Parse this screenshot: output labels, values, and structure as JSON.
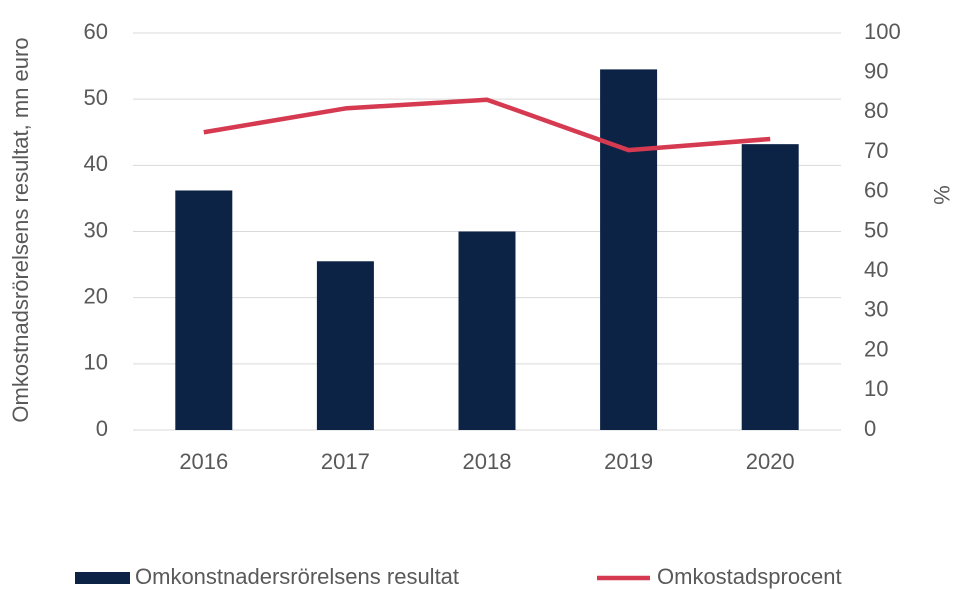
{
  "chart_data": {
    "type": "bar",
    "categories": [
      "2016",
      "2017",
      "2018",
      "2019",
      "2020"
    ],
    "series": [
      {
        "name": "Omkonstnadersrörelsens resultat",
        "type": "bar",
        "color": "#0c2346",
        "values": [
          36.2,
          25.5,
          30,
          54.5,
          43.2
        ]
      },
      {
        "name": "Omkostadsprocent",
        "type": "line",
        "axis": "y2",
        "color": "#d53a50",
        "values": [
          75,
          81,
          83.2,
          70.5,
          73.3
        ]
      }
    ],
    "y_label": "Omkostnadsrörelsens resultat, mn euro",
    "y2_label": "%",
    "ylim": [
      0,
      60
    ],
    "yticks": [
      0,
      10,
      20,
      30,
      40,
      50,
      60
    ],
    "y2lim": [
      0,
      100
    ],
    "y2ticks": [
      0,
      10,
      20,
      30,
      40,
      50,
      60,
      70,
      80,
      90,
      100
    ],
    "grid": true,
    "legend": "bottom"
  }
}
